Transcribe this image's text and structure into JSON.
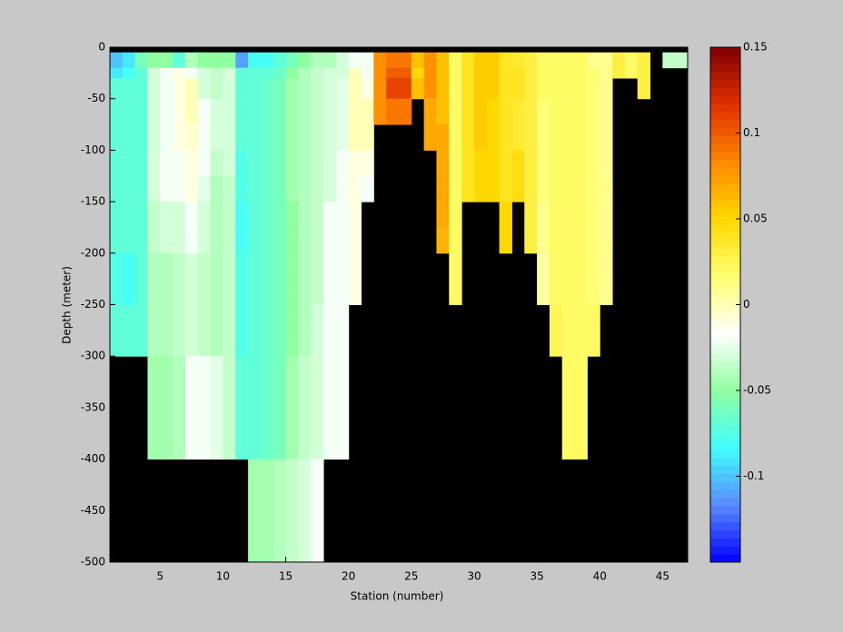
{
  "chart_data": {
    "type": "heatmap",
    "xlabel": "Station (number)",
    "ylabel": "Depth (meter)",
    "xlim": [
      1,
      47
    ],
    "ylim": [
      -500,
      0
    ],
    "xticks": [
      5,
      10,
      15,
      20,
      25,
      30,
      35,
      40,
      45
    ],
    "yticks": [
      0,
      -50,
      -100,
      -150,
      -200,
      -250,
      -300,
      -350,
      -400,
      -450,
      -500
    ],
    "x": [
      1,
      2,
      3,
      4,
      5,
      6,
      7,
      8,
      9,
      10,
      11,
      12,
      13,
      14,
      15,
      16,
      17,
      18,
      19,
      20,
      21,
      22,
      23,
      24,
      25,
      26,
      27,
      28,
      29,
      30,
      31,
      32,
      33,
      34,
      35,
      36,
      37,
      38,
      39,
      40,
      41,
      42,
      43,
      44,
      45,
      46,
      47
    ],
    "y": [
      0,
      -5,
      -20,
      -30,
      -50,
      -75,
      -100,
      -125,
      -150,
      -175,
      -200,
      -225,
      -250,
      -275,
      -300,
      -400,
      -500
    ],
    "z": [
      [
        null,
        -0.1,
        -0.09,
        -0.07,
        -0.07,
        -0.07,
        -0.07,
        -0.07,
        -0.07,
        -0.07,
        -0.075,
        -0.075,
        -0.07,
        -0.07,
        null,
        null
      ],
      [
        null,
        -0.09,
        -0.08,
        -0.07,
        -0.07,
        -0.07,
        -0.07,
        -0.07,
        -0.07,
        -0.07,
        -0.08,
        -0.08,
        -0.07,
        -0.07,
        null,
        null
      ],
      [
        null,
        -0.06,
        -0.07,
        -0.07,
        -0.07,
        -0.07,
        -0.07,
        -0.07,
        -0.07,
        -0.07,
        -0.07,
        -0.07,
        -0.07,
        -0.07,
        null,
        null
      ],
      [
        null,
        -0.05,
        -0.03,
        -0.03,
        -0.03,
        -0.03,
        -0.03,
        -0.03,
        -0.035,
        -0.035,
        -0.04,
        -0.04,
        -0.04,
        -0.04,
        -0.045,
        null
      ],
      [
        null,
        -0.05,
        -0.02,
        -0.02,
        -0.02,
        -0.02,
        -0.02,
        -0.02,
        -0.03,
        -0.03,
        -0.04,
        -0.04,
        -0.04,
        -0.04,
        -0.045,
        null
      ],
      [
        null,
        -0.07,
        -0.01,
        -0.01,
        -0.01,
        -0.01,
        -0.02,
        -0.02,
        -0.03,
        -0.03,
        -0.035,
        -0.035,
        -0.035,
        -0.035,
        -0.04,
        null
      ],
      [
        null,
        -0.04,
        -0.02,
        0,
        0,
        -0.005,
        -0.01,
        -0.01,
        -0.02,
        -0.02,
        -0.03,
        -0.03,
        -0.03,
        -0.03,
        -0.02,
        null
      ],
      [
        null,
        -0.05,
        -0.03,
        -0.03,
        -0.02,
        -0.02,
        -0.02,
        -0.025,
        -0.03,
        -0.03,
        -0.035,
        -0.035,
        -0.035,
        -0.035,
        -0.02,
        null
      ],
      [
        null,
        -0.05,
        -0.035,
        -0.035,
        -0.03,
        -0.03,
        -0.035,
        -0.04,
        -0.04,
        -0.04,
        -0.04,
        -0.04,
        -0.04,
        -0.04,
        -0.025,
        null
      ],
      [
        null,
        -0.05,
        -0.03,
        -0.03,
        -0.03,
        -0.03,
        -0.03,
        -0.035,
        -0.035,
        -0.035,
        -0.035,
        -0.035,
        -0.035,
        -0.035,
        -0.035,
        null
      ],
      [
        null,
        -0.11,
        -0.07,
        -0.07,
        -0.07,
        -0.07,
        -0.075,
        -0.075,
        -0.08,
        -0.08,
        -0.075,
        -0.075,
        -0.075,
        -0.075,
        -0.07,
        null
      ],
      [
        null,
        -0.08,
        -0.07,
        -0.07,
        -0.07,
        -0.07,
        -0.07,
        -0.07,
        -0.07,
        -0.07,
        -0.07,
        -0.07,
        -0.07,
        -0.07,
        -0.07,
        -0.045
      ],
      [
        null,
        -0.08,
        -0.07,
        -0.065,
        -0.065,
        -0.065,
        -0.065,
        -0.065,
        -0.065,
        -0.065,
        -0.065,
        -0.065,
        -0.065,
        -0.065,
        -0.065,
        -0.045
      ],
      [
        null,
        -0.07,
        -0.065,
        -0.06,
        -0.06,
        -0.06,
        -0.06,
        -0.06,
        -0.06,
        -0.06,
        -0.06,
        -0.06,
        -0.06,
        -0.06,
        -0.06,
        -0.04
      ],
      [
        null,
        -0.06,
        -0.05,
        -0.045,
        -0.045,
        -0.045,
        -0.045,
        -0.045,
        -0.05,
        -0.05,
        -0.05,
        -0.05,
        -0.05,
        -0.05,
        -0.045,
        -0.035
      ],
      [
        null,
        -0.05,
        -0.04,
        -0.04,
        -0.04,
        -0.04,
        -0.04,
        -0.04,
        -0.04,
        -0.04,
        -0.04,
        -0.04,
        -0.04,
        -0.04,
        -0.035,
        -0.03
      ],
      [
        null,
        -0.04,
        -0.035,
        -0.035,
        -0.035,
        -0.035,
        -0.035,
        -0.035,
        -0.035,
        -0.035,
        -0.035,
        -0.035,
        -0.03,
        -0.03,
        -0.03,
        -0.02
      ],
      [
        null,
        -0.04,
        -0.03,
        -0.03,
        -0.03,
        -0.03,
        -0.03,
        -0.03,
        -0.02,
        -0.02,
        -0.02,
        -0.02,
        -0.02,
        -0.02,
        -0.02,
        null
      ],
      [
        null,
        -0.03,
        -0.03,
        -0.025,
        -0.025,
        -0.025,
        -0.02,
        -0.02,
        -0.02,
        -0.02,
        -0.02,
        -0.02,
        -0.02,
        -0.02,
        -0.02,
        null
      ],
      [
        null,
        -0.02,
        0,
        0,
        0,
        0,
        -0.01,
        -0.01,
        -0.01,
        -0.01,
        -0.01,
        -0.01,
        null,
        null,
        null,
        null
      ],
      [
        null,
        -0.02,
        -0.02,
        -0.01,
        0,
        0,
        -0.01,
        -0.02,
        null,
        null,
        null,
        null,
        null,
        null,
        null,
        null
      ],
      [
        null,
        0.08,
        0.08,
        0.08,
        0.08,
        null,
        null,
        null,
        null,
        null,
        null,
        null,
        null,
        null,
        null,
        null
      ],
      [
        null,
        0.09,
        0.1,
        0.11,
        0.09,
        null,
        null,
        null,
        null,
        null,
        null,
        null,
        null,
        null,
        null,
        null
      ],
      [
        null,
        0.09,
        0.1,
        0.11,
        0.09,
        null,
        null,
        null,
        null,
        null,
        null,
        null,
        null,
        null,
        null,
        null
      ],
      [
        null,
        0.06,
        0.05,
        0.06,
        null,
        null,
        null,
        null,
        null,
        null,
        null,
        null,
        null,
        null,
        null,
        null
      ],
      [
        null,
        0.08,
        0.08,
        0.08,
        0.07,
        0.07,
        null,
        null,
        null,
        null,
        null,
        null,
        null,
        null,
        null,
        null
      ],
      [
        null,
        0.06,
        0.06,
        0.06,
        0.06,
        0.07,
        0.07,
        0.07,
        0.07,
        0.065,
        null,
        null,
        null,
        null,
        null,
        null
      ],
      [
        null,
        0.02,
        0.02,
        0.02,
        0.02,
        0.02,
        0.02,
        0.02,
        0.02,
        0.02,
        0.02,
        0.02,
        null,
        null,
        null,
        null
      ],
      [
        null,
        0.04,
        0.04,
        0.04,
        0.04,
        0.04,
        0.04,
        0.04,
        null,
        null,
        null,
        null,
        null,
        null,
        null,
        null
      ],
      [
        null,
        0.055,
        0.055,
        0.055,
        0.055,
        0.055,
        0.05,
        0.05,
        null,
        null,
        null,
        null,
        null,
        null,
        null,
        null
      ],
      [
        null,
        0.055,
        0.055,
        0.055,
        0.05,
        0.05,
        0.05,
        0.05,
        null,
        null,
        null,
        null,
        null,
        null,
        null,
        null
      ],
      [
        null,
        0.04,
        0.04,
        0.04,
        0.04,
        0.04,
        0.04,
        0.04,
        0.05,
        0.05,
        null,
        null,
        null,
        null,
        null,
        null
      ],
      [
        null,
        0.035,
        0.04,
        0.04,
        0.035,
        0.035,
        0.045,
        0.045,
        null,
        null,
        null,
        null,
        null,
        null,
        null,
        null
      ],
      [
        null,
        0.03,
        0.03,
        0.03,
        0.03,
        0.03,
        0.03,
        0.03,
        0.03,
        0.03,
        null,
        null,
        null,
        null,
        null,
        null
      ],
      [
        null,
        0.02,
        0.02,
        0.02,
        0.015,
        0.015,
        0.015,
        0.015,
        0.01,
        0.01,
        0.005,
        0.005,
        null,
        null,
        null,
        null
      ],
      [
        null,
        0.02,
        0.02,
        0.02,
        0.02,
        0.02,
        0.02,
        0.02,
        0.02,
        0.02,
        0.02,
        0.02,
        0.025,
        0.025,
        null,
        null
      ],
      [
        null,
        0.02,
        0.02,
        0.02,
        0.02,
        0.02,
        0.02,
        0.02,
        0.02,
        0.02,
        0.02,
        0.02,
        0.02,
        0.02,
        0.02,
        null
      ],
      [
        null,
        0.02,
        0.02,
        0.02,
        0.02,
        0.02,
        0.02,
        0.02,
        0.02,
        0.02,
        0.02,
        0.02,
        0.02,
        0.02,
        0.02,
        null
      ],
      [
        null,
        0.01,
        0.015,
        0.015,
        0.015,
        0.015,
        0.015,
        0.015,
        0.015,
        0.015,
        0.015,
        0.015,
        0.02,
        0.02,
        null,
        null
      ],
      [
        null,
        0.01,
        0.01,
        0.01,
        0.01,
        0.01,
        0.01,
        0.01,
        0.01,
        0.01,
        0.01,
        0.01,
        null,
        null,
        null,
        null
      ],
      [
        null,
        0.03,
        0.03,
        null,
        null,
        null,
        null,
        null,
        null,
        null,
        null,
        null,
        null,
        null,
        null,
        null
      ],
      [
        null,
        0.02,
        0.02,
        null,
        null,
        null,
        null,
        null,
        null,
        null,
        null,
        null,
        null,
        null,
        null,
        null
      ],
      [
        null,
        0.03,
        0.03,
        0.03,
        null,
        null,
        null,
        null,
        null,
        null,
        null,
        null,
        null,
        null,
        null,
        null
      ],
      [
        null,
        null,
        null,
        null,
        null,
        null,
        null,
        null,
        null,
        null,
        null,
        null,
        null,
        null,
        null,
        null
      ],
      [
        null,
        -0.035,
        null,
        null,
        null,
        null,
        null,
        null,
        null,
        null,
        null,
        null,
        null,
        null,
        null,
        null
      ],
      [
        null,
        -0.035,
        null,
        null,
        null,
        null,
        null,
        null,
        null,
        null,
        null,
        null,
        null,
        null,
        null,
        null
      ]
    ],
    "clim": [
      -0.15,
      0.15
    ],
    "cticks": [
      -0.1,
      -0.05,
      0,
      0.05,
      0.1,
      0.15
    ],
    "colormap": [
      "#0000ff",
      "#5a8aff",
      "#40ffff",
      "#90ffa0",
      "#ffffff",
      "#ffff70",
      "#ffd800",
      "#ff8800",
      "#e03000",
      "#800000"
    ],
    "missing_color": "#000000"
  }
}
